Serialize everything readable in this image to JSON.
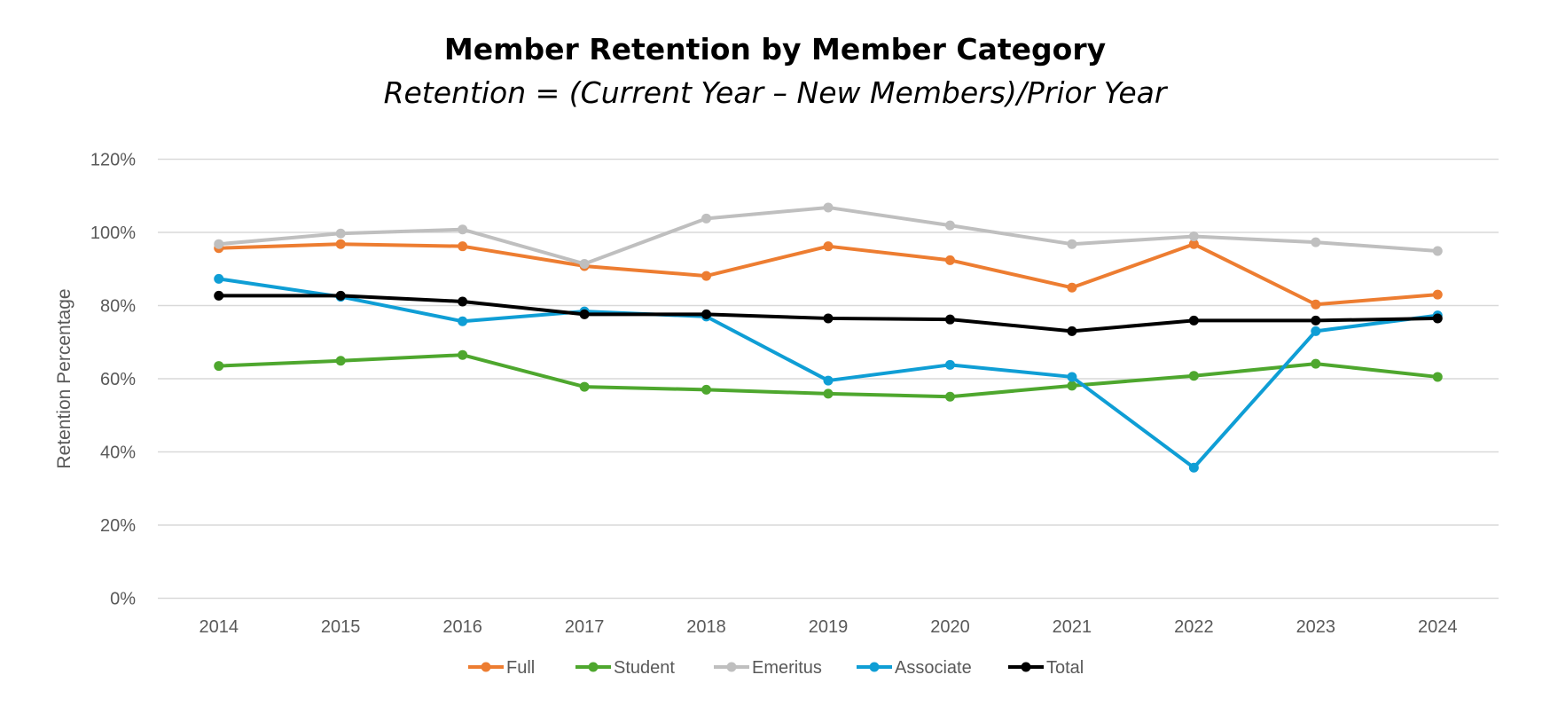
{
  "chart_data": {
    "type": "line",
    "title": "Member Retention by Member Category",
    "subtitle": "Retention = (Current Year – New Members)/Prior Year",
    "xlabel": "",
    "ylabel": "Retention Percentage",
    "ylim": [
      0,
      120
    ],
    "y_ticks": [
      "0%",
      "20%",
      "40%",
      "60%",
      "80%",
      "100%",
      "120%"
    ],
    "y_tick_values": [
      0,
      20,
      40,
      60,
      80,
      100,
      120
    ],
    "grid": true,
    "legend_position": "bottom",
    "categories": [
      "2014",
      "2015",
      "2016",
      "2017",
      "2018",
      "2019",
      "2020",
      "2021",
      "2022",
      "2023",
      "2024"
    ],
    "series": [
      {
        "name": "Full",
        "color": "#ED7D31",
        "values": [
          95.7,
          96.8,
          96.2,
          90.8,
          88.1,
          96.2,
          92.4,
          84.9,
          96.8,
          80.3,
          83.0
        ]
      },
      {
        "name": "Student",
        "color": "#4EA72E",
        "values": [
          63.5,
          64.9,
          66.5,
          57.8,
          57.0,
          55.9,
          55.1,
          58.1,
          60.8,
          64.1,
          60.5
        ]
      },
      {
        "name": "Emeritus",
        "color": "#BFBFBF",
        "values": [
          96.8,
          99.7,
          100.8,
          91.4,
          103.8,
          106.8,
          101.9,
          96.8,
          98.9,
          97.3,
          94.9
        ]
      },
      {
        "name": "Associate",
        "color": "#0F9ED5",
        "values": [
          87.3,
          82.4,
          75.7,
          78.4,
          77.0,
          59.5,
          63.8,
          60.5,
          35.7,
          73.0,
          77.3
        ]
      },
      {
        "name": "Total",
        "color": "#000000",
        "values": [
          82.7,
          82.7,
          81.1,
          77.6,
          77.6,
          76.5,
          76.2,
          73.0,
          75.9,
          75.9,
          76.5
        ]
      }
    ]
  }
}
